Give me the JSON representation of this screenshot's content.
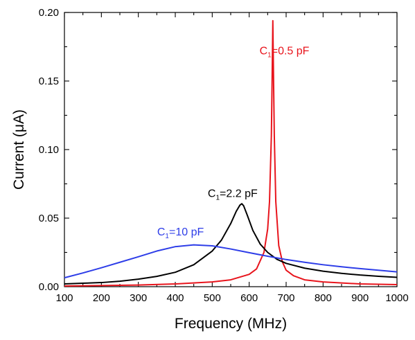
{
  "chart_data": {
    "type": "line",
    "title": "",
    "xlabel": "Frequency (MHz)",
    "ylabel_main": "Current (",
    "ylabel_unit": "μA",
    "ylabel_close": ")",
    "xlim": [
      100,
      1000
    ],
    "ylim": [
      0,
      0.2
    ],
    "x_ticks": [
      "100",
      "200",
      "300",
      "400",
      "500",
      "600",
      "700",
      "800",
      "900",
      "1000"
    ],
    "y_ticks": [
      "0.00",
      "0.05",
      "0.10",
      "0.15",
      "0.20"
    ],
    "grid": false,
    "legend": "none",
    "series": [
      {
        "label_main": "C",
        "label_sub": "1",
        "label_rest": "=0.5 pF",
        "color": "#e8141c",
        "x": [
          100,
          200,
          300,
          400,
          500,
          550,
          600,
          620,
          640,
          650,
          655,
          660,
          662,
          664,
          666,
          668,
          672,
          680,
          690,
          700,
          720,
          750,
          800,
          900,
          1000
        ],
        "y": [
          0.0005,
          0.0008,
          0.0012,
          0.002,
          0.0035,
          0.005,
          0.009,
          0.013,
          0.025,
          0.042,
          0.062,
          0.11,
          0.15,
          0.194,
          0.15,
          0.11,
          0.062,
          0.03,
          0.018,
          0.012,
          0.008,
          0.005,
          0.0035,
          0.002,
          0.0015
        ]
      },
      {
        "label_main": "C",
        "label_sub": "1",
        "label_rest": "=2.2 pF",
        "color": "#000000",
        "x": [
          100,
          150,
          200,
          250,
          300,
          350,
          400,
          450,
          500,
          525,
          550,
          565,
          575,
          580,
          585,
          595,
          610,
          630,
          650,
          675,
          700,
          750,
          800,
          850,
          900,
          950,
          1000
        ],
        "y": [
          0.002,
          0.0025,
          0.003,
          0.004,
          0.0055,
          0.0075,
          0.0105,
          0.016,
          0.026,
          0.034,
          0.046,
          0.055,
          0.0595,
          0.0605,
          0.059,
          0.052,
          0.041,
          0.031,
          0.025,
          0.02,
          0.017,
          0.0135,
          0.0113,
          0.0097,
          0.0085,
          0.0076,
          0.0068
        ]
      },
      {
        "label_main": "C",
        "label_sub": "1",
        "label_rest": "=10 pF",
        "color": "#2d3de8",
        "x": [
          100,
          150,
          200,
          250,
          300,
          350,
          400,
          450,
          500,
          550,
          600,
          650,
          700,
          750,
          800,
          850,
          900,
          950,
          1000
        ],
        "y": [
          0.0065,
          0.01,
          0.0138,
          0.0178,
          0.0218,
          0.026,
          0.0292,
          0.0305,
          0.0298,
          0.0275,
          0.0248,
          0.0222,
          0.0198,
          0.0178,
          0.016,
          0.0145,
          0.0132,
          0.012,
          0.0108
        ]
      }
    ],
    "annotations": [
      {
        "series": 0,
        "x": 628,
        "y": 0.1695
      },
      {
        "series": 1,
        "x": 488,
        "y": 0.0653
      },
      {
        "series": 2,
        "x": 351,
        "y": 0.0373
      }
    ]
  }
}
